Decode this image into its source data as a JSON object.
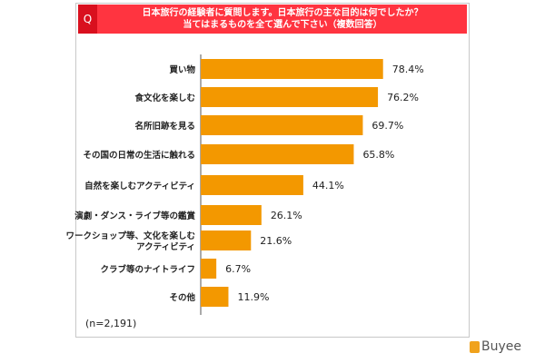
{
  "header": {
    "q": "Q",
    "title_line1": "日本旅行の経験者に質問します。日本旅行の主な目的は何でしたか？",
    "title_line2": "当てはまるものを全て選んで下さい（複数回答）"
  },
  "footer": {
    "n": "(n=2,191)",
    "logo": "Buyee"
  },
  "chart_data": {
    "type": "bar",
    "orientation": "horizontal",
    "title": "日本旅行の経験者に質問します。日本旅行の主な目的は何でしたか？当てはまるものを全て選んで下さい（複数回答）",
    "categories": [
      [
        "買い物"
      ],
      [
        "食文化を楽しむ"
      ],
      [
        "名所旧跡を見る"
      ],
      [
        "その国の日常の生活に触れる"
      ],
      [
        "自然を楽しむアクティビティ"
      ],
      [
        "演劇・ダンス・ライブ等の鑑賞"
      ],
      [
        "ワークショップ等、文化を楽しむ",
        "アクティビティ"
      ],
      [
        "クラブ等のナイトライフ"
      ],
      [
        "その他"
      ]
    ],
    "values": [
      78.4,
      76.2,
      69.7,
      65.8,
      44.1,
      26.1,
      21.6,
      6.7,
      11.9
    ],
    "labels": [
      "78.4%",
      "76.2%",
      "69.7%",
      "65.8%",
      "44.1%",
      "26.1%",
      "21.6%",
      "6.7%",
      "11.9%"
    ],
    "color": "#f39800",
    "xlim": [
      0,
      100
    ],
    "grid": false
  }
}
